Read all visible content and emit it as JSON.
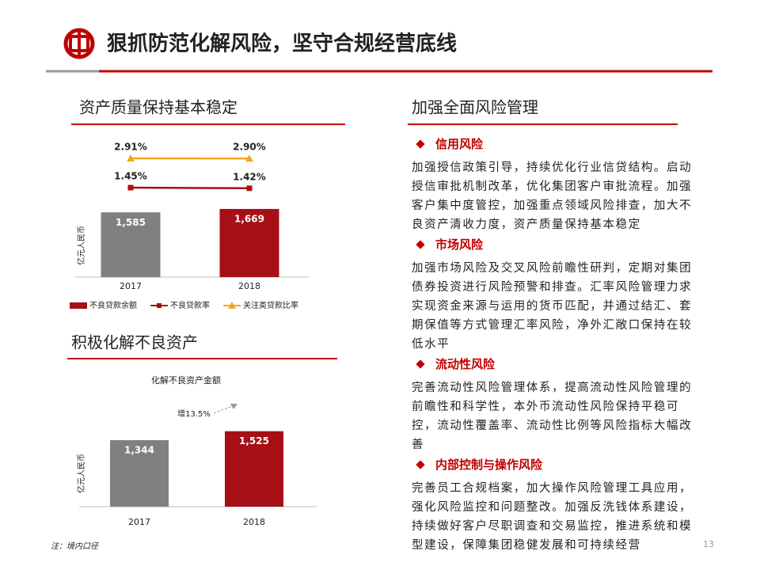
{
  "header": {
    "title": "狠抓防范化解风险，坚守合规经营底线"
  },
  "chart_data": [
    {
      "type": "bar",
      "section_title": "资产质量保持基本稳定",
      "categories": [
        "2017",
        "2018"
      ],
      "ylabel": "亿元人民币",
      "ylim": [
        0,
        3200
      ],
      "y2lim": [
        -3,
        3.5
      ],
      "series": [
        {
          "name": "不良贷款余额",
          "type": "bar",
          "color": "#a50f15",
          "bar_colors": [
            "#808080",
            "#a50f15"
          ],
          "values": [
            1585,
            1669
          ],
          "value_labels": [
            "1,585",
            "1,669"
          ]
        },
        {
          "name": "不良贷款率",
          "type": "line",
          "axis": "y2",
          "color": "#a50f15",
          "marker": "square",
          "values": [
            1.45,
            1.42
          ],
          "value_labels": [
            "1.45%",
            "1.42%"
          ]
        },
        {
          "name": "关注类贷款比率",
          "type": "line",
          "axis": "y2",
          "color": "#f5a623",
          "marker": "triangle",
          "values": [
            2.91,
            2.9
          ],
          "value_labels": [
            "2.91%",
            "2.90%"
          ]
        }
      ]
    },
    {
      "type": "bar",
      "section_title": "积极化解不良资产",
      "title": "化解不良资产金额",
      "categories": [
        "2017",
        "2018"
      ],
      "ylabel": "亿元人民币",
      "ylim": [
        0,
        2400
      ],
      "bar_colors": [
        "#808080",
        "#a50f15"
      ],
      "values": [
        1344,
        1525
      ],
      "value_labels": [
        "1,344",
        "1,525"
      ],
      "annotation": "增13.5%"
    }
  ],
  "risk_section": {
    "title": "加强全面风险管理",
    "items": [
      {
        "heading": "信用风险",
        "text": "加强授信政策引导，持续优化行业信贷结构。启动授信审批机制改革，优化集团客户审批流程。加强客户集中度管控，加强重点领域风险排查，加大不良资产清收力度，资产质量保持基本稳定"
      },
      {
        "heading": "市场风险",
        "text": "加强市场风险及交叉风险前瞻性研判，定期对集团债券投资进行风险预警和排查。汇率风险管理力求实现资金来源与运用的货币匹配，并通过结汇、套期保值等方式管理汇率风险，净外汇敞口保持在较低水平"
      },
      {
        "heading": "流动性风险",
        "text": "完善流动性风险管理体系，提高流动性风险管理的前瞻性和科学性，本外币流动性风险保持平稳可控，流动性覆盖率、流动性比例等风险指标大幅改善"
      },
      {
        "heading": "内部控制与操作风险",
        "text": "完善员工合规档案，加大操作风险管理工具应用，强化风险监控和问题整改。加强反洗钱体系建设，持续做好客户尽职调查和交易监控，推进系统和模型建设，保障集团稳健发展和可持续经营"
      }
    ]
  },
  "footnote": "注：境内口径",
  "page_number": "13"
}
